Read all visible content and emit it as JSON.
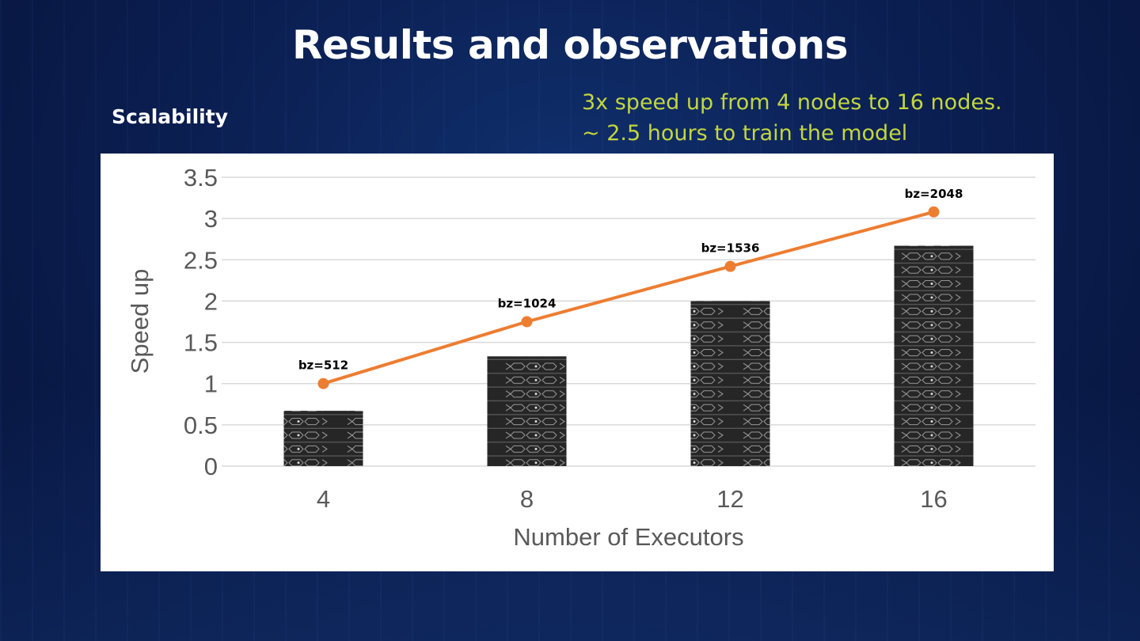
{
  "slide": {
    "title": "Results and observations",
    "subtitle": "Scalability",
    "notes": [
      "3x speed up from 4 nodes to 16 nodes.",
      "~ 2.5 hours to train the model"
    ]
  },
  "chart_data": {
    "type": "bar",
    "categories": [
      "4",
      "8",
      "12",
      "16"
    ],
    "xlabel": "Number of Executors",
    "ylabel": "Speed  up",
    "ylim": [
      0,
      3.5
    ],
    "yticks": [
      "0",
      "0.5",
      "1",
      "1.5",
      "2",
      "2.5",
      "3",
      "3.5"
    ],
    "grid": true,
    "series": [
      {
        "name": "Executors (bar, server-stack pictograph)",
        "type": "bar",
        "values": [
          0.67,
          1.33,
          2.0,
          2.67
        ],
        "color": "#2b2b2b"
      },
      {
        "name": "Speed up",
        "type": "line",
        "values": [
          1.0,
          1.75,
          2.42,
          3.08
        ],
        "color": "#ed7d31",
        "labels": [
          "bz=512",
          "bz=1024",
          "bz=1536",
          "bz=2048"
        ]
      }
    ]
  }
}
